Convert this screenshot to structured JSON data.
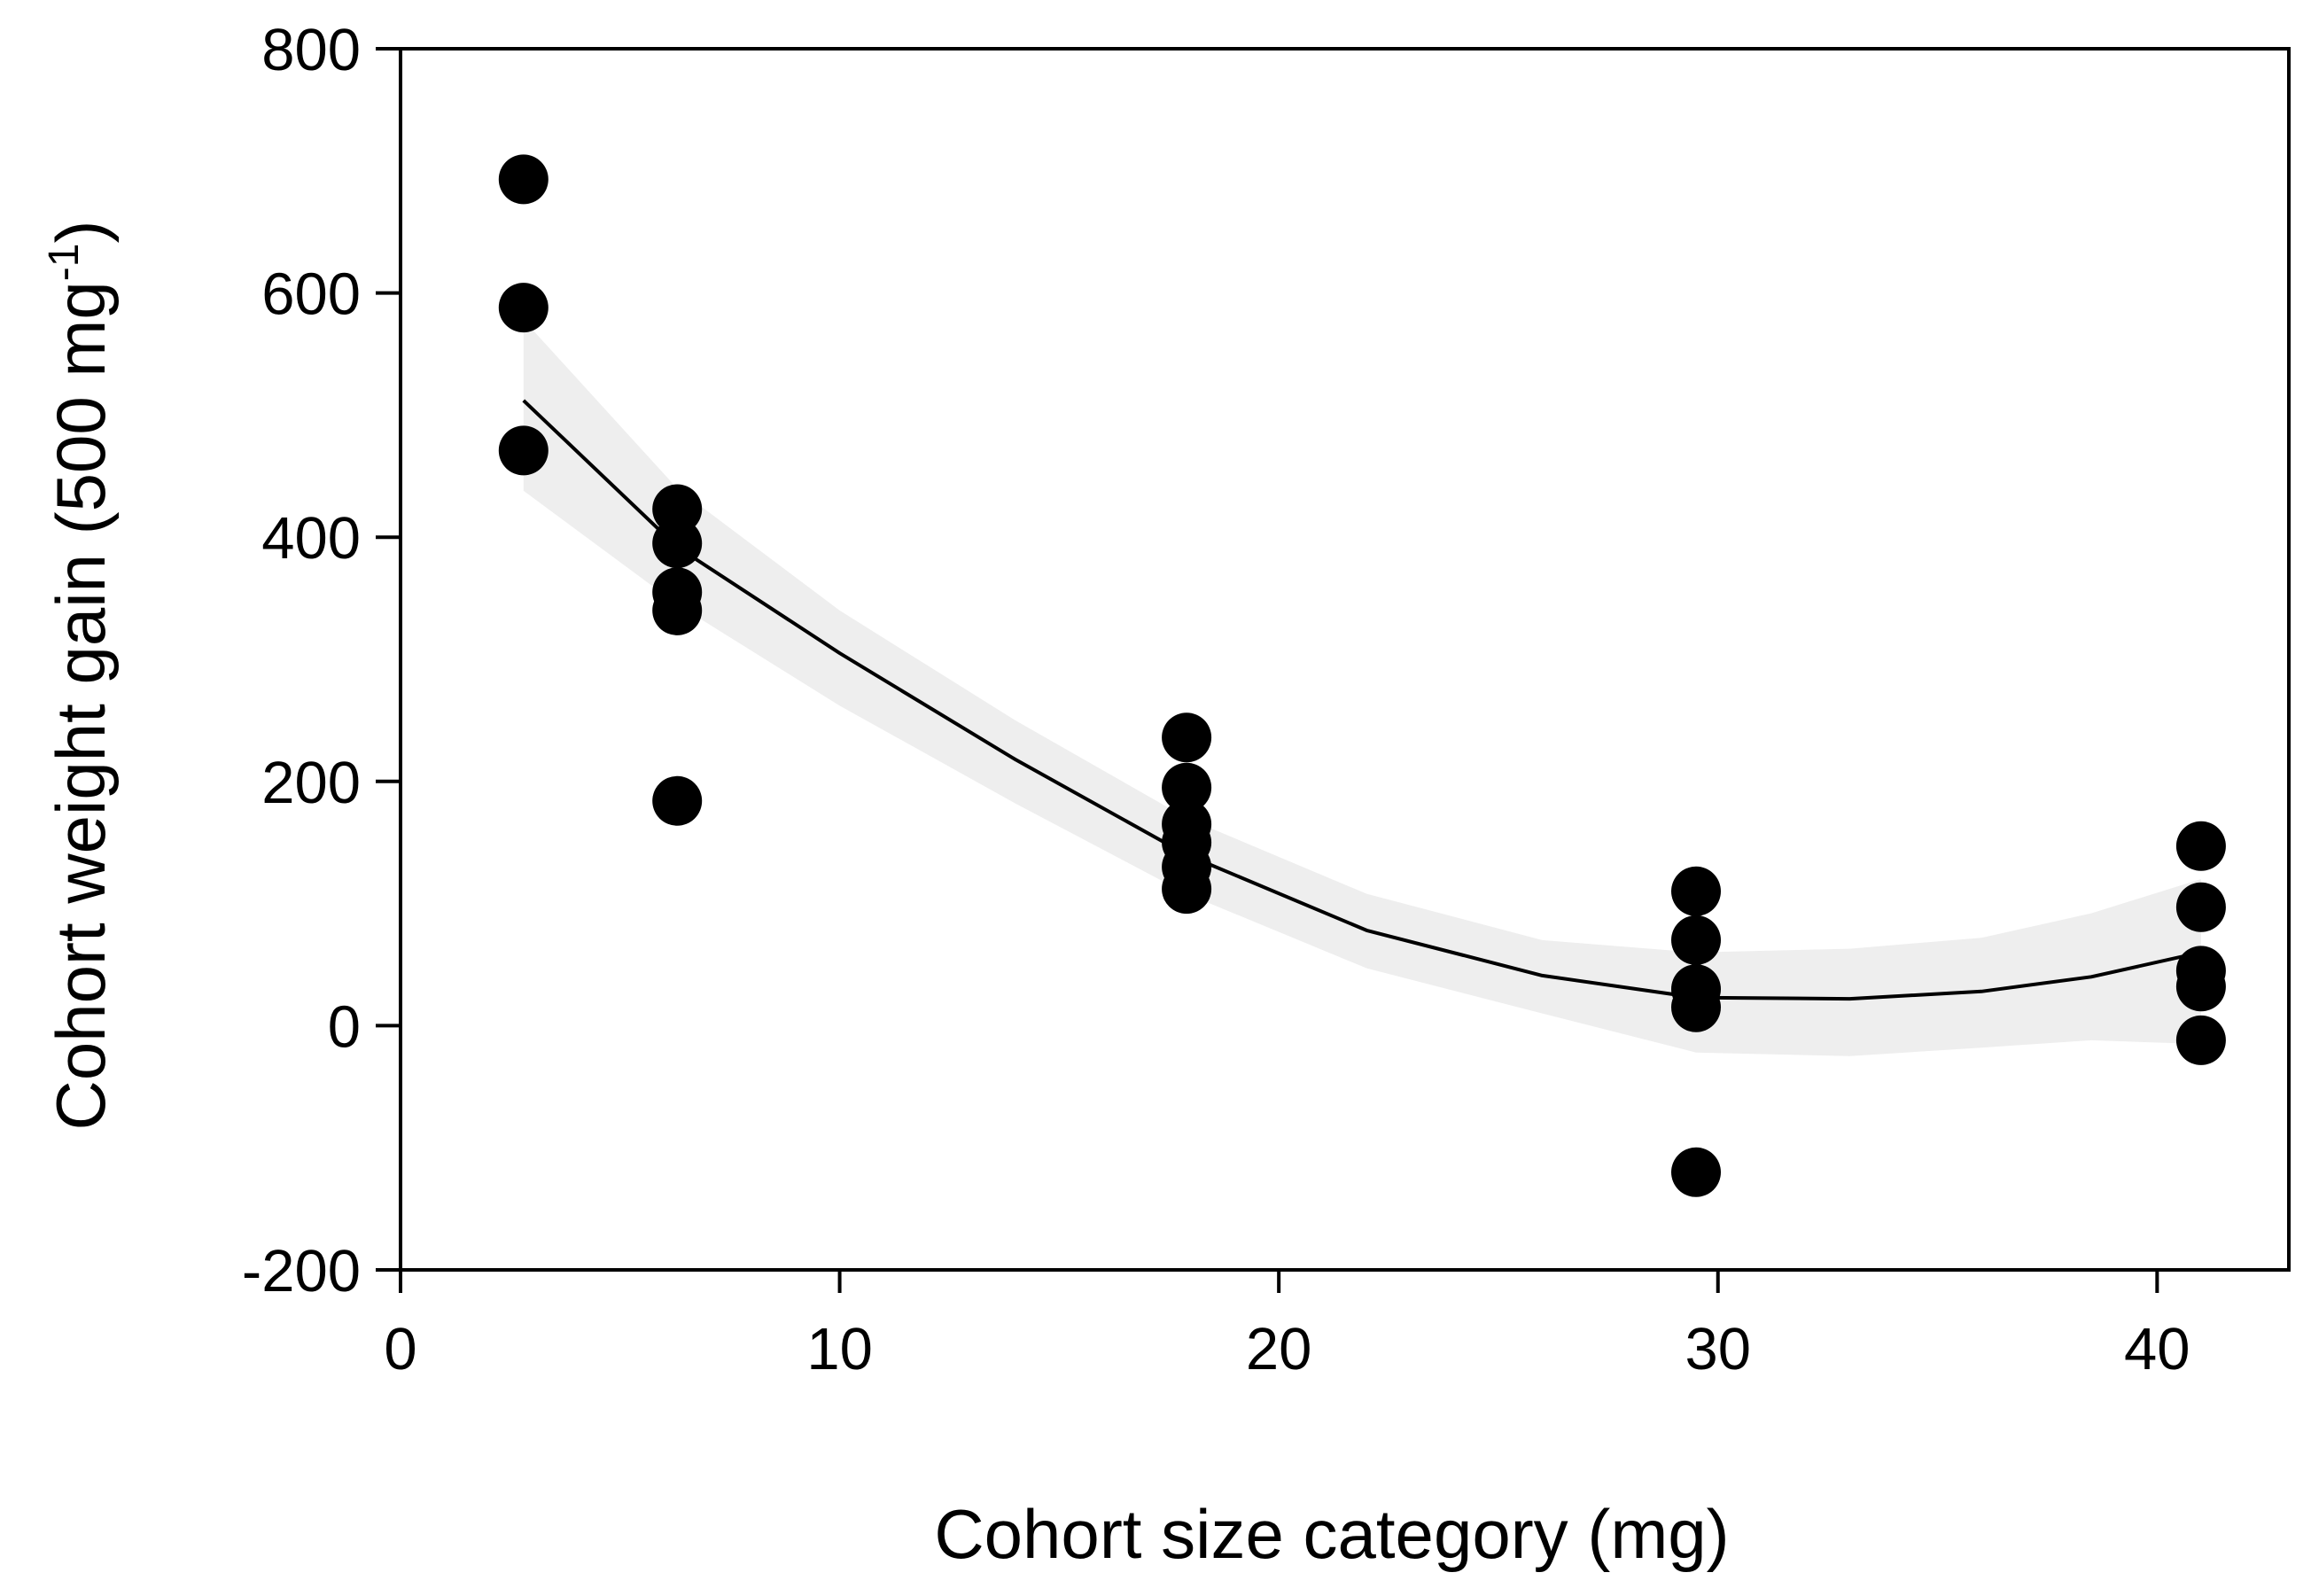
{
  "chart_data": {
    "type": "scatter",
    "title": "",
    "xlabel": "Cohort size category (mg)",
    "ylabel": {
      "main": "Cohort weight gain (500 mg",
      "superscript": "-1",
      "close": ")"
    },
    "xlim": [
      0,
      43
    ],
    "ylim": [
      -200,
      800
    ],
    "xticks": [
      0,
      10,
      20,
      30,
      40
    ],
    "xtick_labels": [
      "0",
      "10",
      "20",
      "30",
      "40"
    ],
    "yticks": [
      -200,
      0,
      200,
      400,
      600,
      800
    ],
    "ytick_labels": [
      "-200",
      "0",
      "200",
      "400",
      "600",
      "800"
    ],
    "grid": false,
    "points": [
      {
        "x": 2.8,
        "y": 693
      },
      {
        "x": 2.8,
        "y": 588
      },
      {
        "x": 2.8,
        "y": 471
      },
      {
        "x": 6.3,
        "y": 423
      },
      {
        "x": 6.3,
        "y": 395
      },
      {
        "x": 6.3,
        "y": 355
      },
      {
        "x": 6.3,
        "y": 340
      },
      {
        "x": 6.3,
        "y": 184
      },
      {
        "x": 17.9,
        "y": 236
      },
      {
        "x": 17.9,
        "y": 195
      },
      {
        "x": 17.9,
        "y": 165
      },
      {
        "x": 17.9,
        "y": 150
      },
      {
        "x": 17.9,
        "y": 130
      },
      {
        "x": 17.9,
        "y": 112
      },
      {
        "x": 29.5,
        "y": 110
      },
      {
        "x": 29.5,
        "y": 70
      },
      {
        "x": 29.5,
        "y": 30
      },
      {
        "x": 29.5,
        "y": 15
      },
      {
        "x": 29.5,
        "y": -120
      },
      {
        "x": 41.0,
        "y": 147
      },
      {
        "x": 41.0,
        "y": 97
      },
      {
        "x": 41.0,
        "y": 45
      },
      {
        "x": 41.0,
        "y": 32
      },
      {
        "x": 41.0,
        "y": -12
      }
    ],
    "fit_line": {
      "x": [
        2.8,
        6.3,
        10,
        14,
        17.9,
        22,
        26,
        29.5,
        33,
        36,
        38.5,
        41.0
      ],
      "y": [
        512,
        392,
        305,
        218,
        140,
        78,
        41,
        23,
        22,
        28,
        40,
        60
      ]
    },
    "confidence_band": {
      "x": [
        2.8,
        6.3,
        10,
        14,
        17.9,
        22,
        26,
        29.5,
        33,
        36,
        38.5,
        41.0
      ],
      "upper": [
        578,
        440,
        340,
        250,
        170,
        108,
        70,
        60,
        63,
        72,
        92,
        120
      ],
      "lower": [
        438,
        345,
        262,
        182,
        108,
        47,
        10,
        -22,
        -25,
        -18,
        -12,
        -15
      ]
    },
    "colors": {
      "points": "#000000",
      "fit_line": "#000000",
      "band": "#eeeeee",
      "axes": "#000000"
    }
  }
}
